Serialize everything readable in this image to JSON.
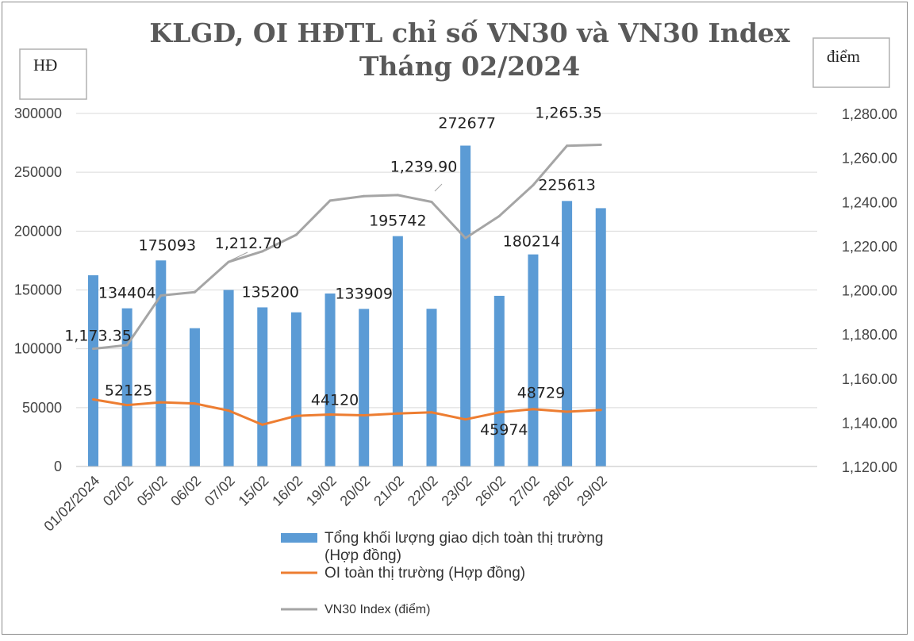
{
  "chart_data": {
    "type": "bar",
    "title_lines": [
      "KLGD, OI HĐTL chỉ số VN30 và VN30 Index",
      "Tháng 02/2024"
    ],
    "y_left_unit": "HĐ",
    "y_right_unit": "điểm",
    "categories": [
      "01/02/2024",
      "02/02",
      "05/02",
      "06/02",
      "07/02",
      "15/02",
      "16/02",
      "19/02",
      "20/02",
      "21/02",
      "22/02",
      "23/02",
      "26/02",
      "27/02",
      "28/02",
      "29/02"
    ],
    "y_left_ticks": [
      "0",
      "50000",
      "100000",
      "150000",
      "200000",
      "250000",
      "300000"
    ],
    "y_right_ticks": [
      "1,120.00",
      "1,140.00",
      "1,160.00",
      "1,180.00",
      "1,200.00",
      "1,220.00",
      "1,240.00",
      "1,260.00",
      "1,280.00"
    ],
    "ylim_left": [
      0,
      300000
    ],
    "ylim_right": [
      1120,
      1280
    ],
    "grid": true,
    "legend_position": "bottom",
    "series": [
      {
        "name": "Tổng khối lượng giao dịch toàn thị trường (Hợp đồng)",
        "legend_lines": [
          "Tổng khối lượng giao dịch toàn thị trường",
          "(Hợp đồng)"
        ],
        "kind": "bar",
        "axis": "left",
        "color": "#5b9bd5",
        "values": [
          162500,
          134404,
          175093,
          117500,
          150000,
          135200,
          131000,
          147000,
          133909,
          195742,
          134000,
          272677,
          145000,
          180214,
          225613,
          219500
        ],
        "labels": [
          null,
          "134404",
          "175093",
          null,
          null,
          "135200",
          null,
          null,
          "133909",
          "195742",
          null,
          "272677",
          null,
          "180214",
          "225613",
          null
        ]
      },
      {
        "name": "OI toàn thị trường (Hợp đồng)",
        "kind": "line",
        "axis": "left",
        "color": "#ed7d31",
        "values": [
          57000,
          52125,
          54500,
          53500,
          47500,
          35500,
          43000,
          44120,
          43500,
          45000,
          46000,
          40000,
          45974,
          48729,
          46500,
          48000
        ],
        "labels": [
          null,
          "52125",
          null,
          null,
          null,
          null,
          null,
          "44120",
          null,
          null,
          null,
          null,
          "45974",
          "48729",
          null,
          null
        ]
      },
      {
        "name": "VN30 Index (điểm)",
        "kind": "line",
        "axis": "right",
        "color": "#a5a5a5",
        "values": [
          1173.35,
          1175,
          1197.5,
          1199,
          1212.7,
          1217.5,
          1225,
          1240.5,
          1242.5,
          1243,
          1239.9,
          1223.5,
          1233.5,
          1247.5,
          1265.35,
          1265.8
        ],
        "labels": [
          "1,173.35",
          null,
          null,
          null,
          "1,212.70",
          null,
          null,
          null,
          null,
          null,
          "1,239.90",
          null,
          null,
          null,
          "1,265.35",
          null
        ]
      }
    ]
  }
}
